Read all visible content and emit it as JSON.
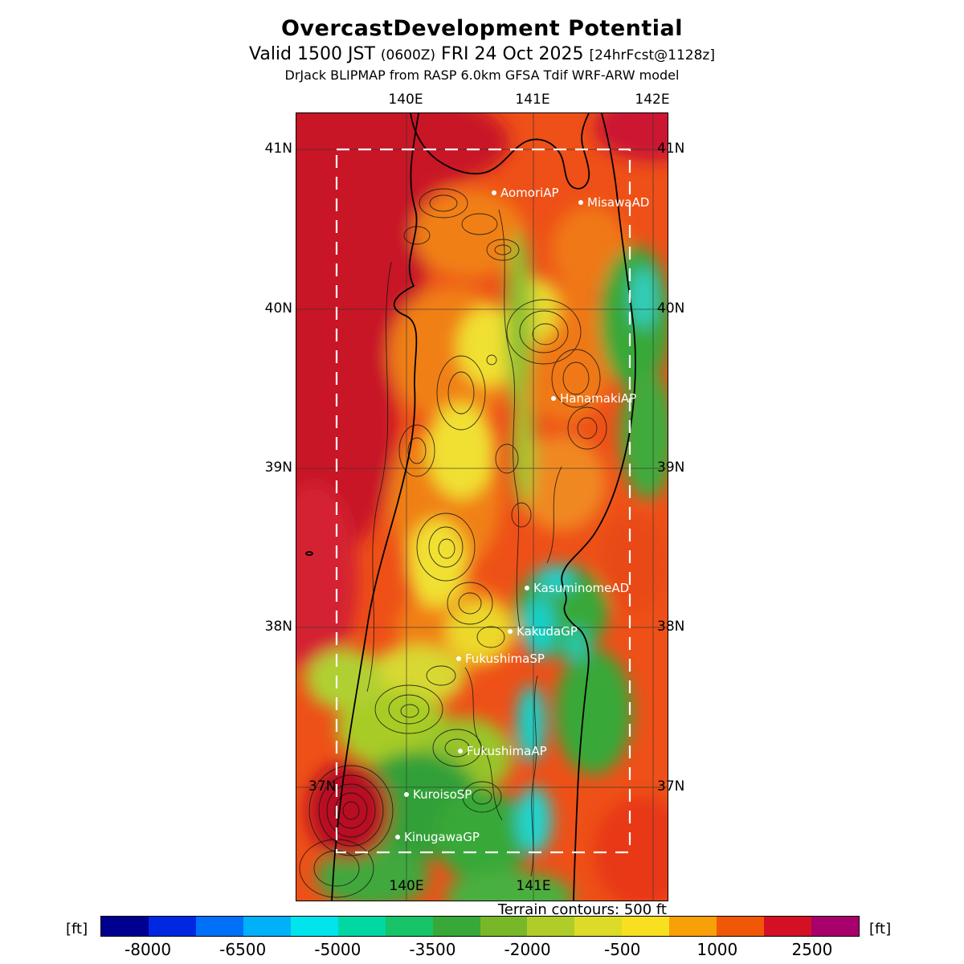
{
  "header": {
    "title": "OvercastDevelopment Potential",
    "valid_line": {
      "prefix": "Valid 1500 JST ",
      "zulu": "(0600Z)",
      "middle": " FRI 24 Oct 2025 ",
      "fcst": "[24hrFcst@1128z]"
    },
    "model_line": "DrJack BLIPMAP from RASP 6.0km GFSA Tdif WRF-ARW model"
  },
  "map": {
    "grid": {
      "lon_top": [
        "140E",
        "141E",
        "142E"
      ],
      "lon_bottom": [
        "140E",
        "141E"
      ],
      "lat_left": [
        "41N",
        "40N",
        "39N",
        "38N",
        "37N"
      ],
      "lat_right": [
        "41N",
        "40N",
        "39N",
        "38N",
        "37N"
      ]
    },
    "stations": [
      "AomoriAP",
      "MisawaAD",
      "HanamakiAP",
      "KasuminomeAD",
      "KakudaGP",
      "FukushimaSP",
      "FukushimaAP",
      "KuroisoSP",
      "KinugawaGP"
    ],
    "terrain_note": "Terrain contours: 500 ft"
  },
  "colorbar": {
    "unit_left": "[ft]",
    "unit_right": "[ft]",
    "ticks": [
      "-8000",
      "-6500",
      "-5000",
      "-3500",
      "-2000",
      "-500",
      "1000",
      "2500"
    ],
    "colors": [
      "#000090",
      "#0028e0",
      "#0070f8",
      "#00b0f8",
      "#00e4ec",
      "#00d8a4",
      "#18c468",
      "#38a838",
      "#78b828",
      "#b0cc28",
      "#dcdc28",
      "#f8e020",
      "#f8a008",
      "#f05808",
      "#d41024",
      "#a8006c"
    ]
  }
}
